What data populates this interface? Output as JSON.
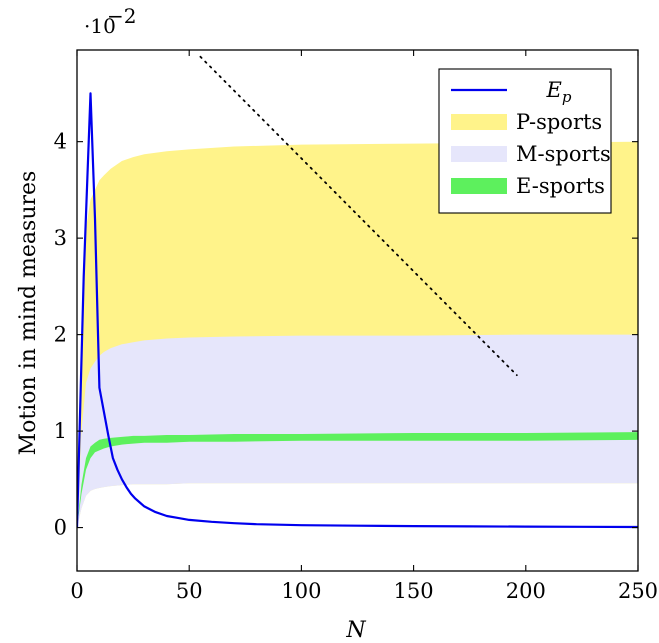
{
  "chart_data": {
    "type": "area",
    "title": "",
    "xlabel": "N",
    "ylabel": "Motion in mind measures",
    "y_scale_label": "·10",
    "y_scale_exponent": "−2",
    "xlim": [
      0,
      250
    ],
    "ylim": [
      -0.45,
      4.95
    ],
    "x_ticks": [
      0,
      50,
      100,
      150,
      200,
      250
    ],
    "y_ticks": [
      0,
      1,
      2,
      3,
      4
    ],
    "grid": false,
    "legend_position": "top-right",
    "colors": {
      "ep": "#0000ee",
      "p_sports": "#fff38a",
      "m_sports": "#e6e6fb",
      "e_sports": "#5df05d",
      "dotted": "#000000"
    },
    "series": [
      {
        "name": "E_p",
        "kind": "line",
        "x": [
          0,
          3,
          6,
          8,
          10,
          12,
          14,
          16,
          18,
          20,
          22,
          24,
          26,
          28,
          30,
          35,
          40,
          45,
          50,
          60,
          70,
          80,
          90,
          100,
          125,
          150,
          175,
          200,
          225,
          250
        ],
        "y": [
          0,
          2.6,
          4.5,
          3.2,
          1.45,
          1.2,
          0.95,
          0.72,
          0.6,
          0.5,
          0.42,
          0.35,
          0.3,
          0.26,
          0.22,
          0.16,
          0.12,
          0.1,
          0.08,
          0.06,
          0.045,
          0.035,
          0.03,
          0.025,
          0.02,
          0.015,
          0.012,
          0.01,
          0.008,
          0.006
        ]
      },
      {
        "name": "P-sports",
        "kind": "band",
        "x": [
          0,
          2,
          4,
          6,
          8,
          10,
          12,
          15,
          20,
          25,
          30,
          40,
          50,
          70,
          100,
          150,
          200,
          250
        ],
        "lower": [
          0,
          0.2,
          0.33,
          0.38,
          0.4,
          0.41,
          0.42,
          0.43,
          0.44,
          0.45,
          0.45,
          0.45,
          0.46,
          0.46,
          0.46,
          0.46,
          0.46,
          0.46
        ],
        "upper": [
          0,
          2.0,
          3.1,
          3.4,
          3.5,
          3.6,
          3.65,
          3.72,
          3.8,
          3.84,
          3.87,
          3.9,
          3.92,
          3.95,
          3.97,
          3.98,
          3.99,
          4.0
        ]
      },
      {
        "name": "M-sports",
        "kind": "band",
        "x": [
          0,
          2,
          4,
          6,
          8,
          10,
          12,
          15,
          20,
          25,
          30,
          40,
          50,
          70,
          100,
          150,
          200,
          250
        ],
        "lower": [
          0,
          0.2,
          0.33,
          0.38,
          0.4,
          0.41,
          0.42,
          0.43,
          0.44,
          0.45,
          0.45,
          0.45,
          0.46,
          0.46,
          0.46,
          0.46,
          0.46,
          0.46
        ],
        "upper": [
          0,
          1.0,
          1.5,
          1.65,
          1.72,
          1.78,
          1.82,
          1.86,
          1.9,
          1.92,
          1.94,
          1.96,
          1.97,
          1.98,
          1.99,
          1.99,
          2.0,
          2.0
        ]
      },
      {
        "name": "E-sports",
        "kind": "band",
        "x": [
          0,
          2,
          4,
          6,
          8,
          10,
          12,
          15,
          20,
          25,
          30,
          40,
          50,
          70,
          100,
          150,
          200,
          250
        ],
        "lower": [
          0,
          0.35,
          0.6,
          0.72,
          0.78,
          0.8,
          0.82,
          0.84,
          0.86,
          0.87,
          0.88,
          0.88,
          0.89,
          0.89,
          0.9,
          0.9,
          0.9,
          0.91
        ],
        "upper": [
          0,
          0.45,
          0.72,
          0.84,
          0.88,
          0.91,
          0.92,
          0.93,
          0.94,
          0.95,
          0.95,
          0.96,
          0.96,
          0.97,
          0.97,
          0.98,
          0.98,
          0.99
        ]
      },
      {
        "kind": "dotted-line",
        "x": [
          55,
          196
        ],
        "y": [
          4.88,
          1.58
        ]
      }
    ],
    "legend": [
      {
        "label": "E",
        "sub": "p",
        "style": "line",
        "color": "#0000ee"
      },
      {
        "label": "P-sports",
        "style": "fill",
        "color": "#fff38a"
      },
      {
        "label": "M-sports",
        "style": "fill",
        "color": "#e6e6fb"
      },
      {
        "label": "E-sports",
        "style": "fill",
        "color": "#5df05d"
      }
    ]
  }
}
